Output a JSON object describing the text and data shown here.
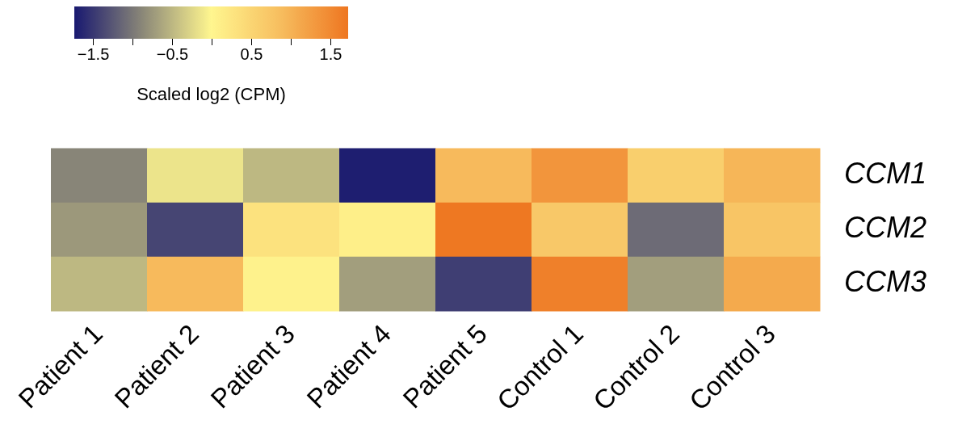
{
  "chart_data": {
    "type": "heatmap",
    "clabel": "Scaled log2 (CPM)",
    "categories": [
      "Patient 1",
      "Patient 2",
      "Patient 3",
      "Patient 4",
      "Patient 5",
      "Control 1",
      "Control 2",
      "Control 3"
    ],
    "y_categories": [
      "CCM1",
      "CCM2",
      "CCM3"
    ],
    "cells": [
      [
        -0.9,
        -0.15,
        -0.5,
        -1.7,
        0.9,
        1.35,
        0.6,
        0.95
      ],
      [
        -0.75,
        -1.4,
        0.3,
        0.1,
        1.7,
        0.7,
        -1.1,
        0.75
      ],
      [
        -0.5,
        0.9,
        0.05,
        -0.7,
        -1.45,
        1.6,
        -0.7,
        1.1
      ]
    ],
    "clim": [
      -1.74,
      1.72
    ],
    "cticks": [
      {
        "value": -1.5,
        "label": "−1.5"
      },
      {
        "value": -1,
        "label": null
      },
      {
        "value": -0.5,
        "label": "−0.5"
      },
      {
        "value": 0,
        "label": null
      },
      {
        "value": 0.5,
        "label": "0.5"
      },
      {
        "value": 1,
        "label": null
      },
      {
        "value": 1.5,
        "label": "1.5"
      }
    ]
  }
}
